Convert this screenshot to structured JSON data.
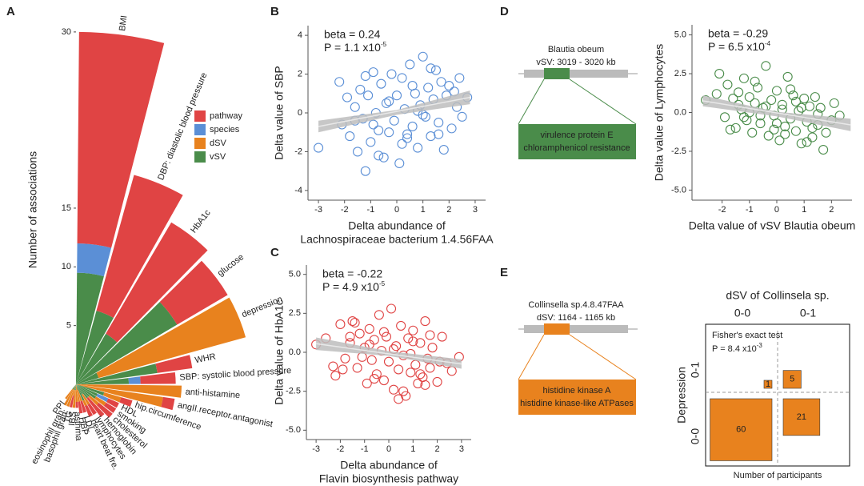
{
  "chart_data": [
    {
      "type": "radial",
      "panel": "A",
      "ylabel": "Number of associations",
      "yticks": [
        5,
        10,
        15,
        30
      ],
      "categories": [
        "BMI",
        "DBP: diastolic blood pressure",
        "HbA1c",
        "glucose",
        "depression",
        "WHR",
        "SBP: systolic blood pressure",
        "anti-histamine",
        "angII.receptor.antagonist",
        "hip.circumference",
        "HDL",
        "smoking",
        "cholesterol",
        "hemoglobin",
        "lymphocytes",
        "heart beat fre.",
        "LDL",
        "HBP",
        "asthma",
        "IBS",
        "TG",
        "basophil gran.",
        "eosinophil gran.",
        "PPI"
      ],
      "series": [
        {
          "name": "pathway",
          "color": "#e04444",
          "values": [
            18,
            12,
            11,
            5,
            0,
            3,
            3,
            0,
            1,
            1,
            1,
            1,
            1.5,
            2,
            1,
            1,
            1,
            1,
            0.5,
            0,
            1,
            0,
            0,
            0
          ]
        },
        {
          "name": "species",
          "color": "#5b8fd6",
          "values": [
            2.5,
            0,
            0,
            0,
            0,
            0,
            1,
            0,
            0,
            0,
            1,
            0,
            0,
            0,
            0,
            0,
            0,
            0,
            0,
            0,
            0,
            0,
            0,
            0
          ]
        },
        {
          "name": "dSV",
          "color": "#e8821e",
          "values": [
            0,
            0,
            0,
            0,
            13,
            0,
            0,
            9,
            7.5,
            1.5,
            0,
            1,
            1,
            0,
            1,
            0.5,
            1,
            1.5,
            1.5,
            1.5,
            0.5,
            2,
            1.5,
            1
          ]
        },
        {
          "name": "vSV",
          "color": "#4a8c4a",
          "values": [
            9.5,
            6.5,
            5,
            10,
            2,
            7,
            4.5,
            0,
            0,
            2.5,
            2,
            2,
            1.5,
            1.5,
            1,
            1.5,
            0.5,
            0,
            0,
            0.5,
            0.5,
            0,
            0.5,
            0.5
          ]
        }
      ]
    },
    {
      "type": "scatter",
      "panel": "B",
      "color": "#5b8fd6",
      "ylabel": "Delta value of SBP",
      "xlabel": [
        "Delta abundance of",
        "Lachnospiraceae bacterium 1.4.56FAA"
      ],
      "beta": "beta = 0.24",
      "p_value": {
        "text": "P = 1.1 x10",
        "exponent": "-5"
      },
      "xlim": [
        -3.4,
        3.4
      ],
      "ylim": [
        -4.5,
        4.5
      ],
      "xticks": [
        -3,
        -2,
        -1,
        0,
        1,
        2,
        3
      ],
      "yticks": [
        -4,
        -2,
        0,
        2,
        4
      ],
      "x": [
        -3.0,
        -2.2,
        -2.1,
        -1.9,
        -1.8,
        -1.6,
        -1.5,
        -1.4,
        -1.3,
        -1.2,
        -1.1,
        -1.0,
        -0.9,
        -0.8,
        -0.7,
        -0.6,
        -0.5,
        -0.4,
        -0.3,
        -0.2,
        -0.1,
        0.0,
        0.1,
        0.2,
        0.3,
        0.4,
        0.5,
        0.6,
        0.7,
        0.8,
        0.9,
        1.0,
        1.1,
        1.2,
        1.3,
        1.4,
        1.5,
        1.6,
        1.7,
        1.8,
        1.9,
        2.0,
        2.1,
        2.2,
        2.3,
        2.4,
        2.5,
        2.7,
        -1.2,
        -0.7,
        -0.3,
        0.2,
        0.6,
        1.0,
        1.3,
        -0.9,
        0.4,
        0.8,
        -1.6,
        1.6
      ],
      "y": [
        -1.8,
        1.6,
        -0.6,
        0.8,
        -1.2,
        0.3,
        -2.0,
        1.2,
        -0.3,
        -3.0,
        0.9,
        -1.5,
        2.1,
        0.0,
        -0.9,
        1.5,
        -2.3,
        0.5,
        -1.0,
        2.0,
        -0.4,
        0.9,
        -2.6,
        1.8,
        0.2,
        -1.3,
        2.5,
        -0.7,
        1.0,
        -1.8,
        0.4,
        2.9,
        -0.2,
        1.3,
        -1.2,
        0.7,
        2.2,
        -0.5,
        1.6,
        -1.9,
        0.9,
        1.4,
        -0.8,
        1.1,
        0.3,
        1.8,
        -0.2,
        0.8,
        1.9,
        -2.2,
        0.6,
        -1.6,
        1.4,
        -0.1,
        2.3,
        -0.6,
        -1.1,
        0.1,
        -0.4,
        -1.1
      ],
      "fit": {
        "x": [
          -3.0,
          2.8
        ],
        "y": [
          -0.7,
          0.8
        ]
      },
      "band": {
        "x": [
          -3.0,
          0,
          2.8
        ],
        "lower": [
          -1.0,
          -0.1,
          0.45
        ],
        "upper": [
          -0.4,
          0.15,
          1.15
        ]
      }
    },
    {
      "type": "scatter",
      "panel": "C",
      "color": "#e04444",
      "ylabel": "Delta value of HbA1c",
      "xlabel": [
        "Delta abundance of",
        "Flavin biosynthesis pathway"
      ],
      "beta": "beta = -0.22",
      "p_value": {
        "text": "P = 4.9 x10",
        "exponent": "-5"
      },
      "xlim": [
        -3.4,
        3.4
      ],
      "ylim": [
        -5.6,
        5.6
      ],
      "xticks": [
        -3,
        -2,
        -1,
        0,
        1,
        2,
        3
      ],
      "yticks": [
        {
          "value": 5,
          "label": "5.0"
        },
        2.5,
        {
          "value": 0,
          "label": "0.0"
        },
        -2.5,
        {
          "value": -5,
          "label": "-5.0"
        }
      ],
      "x": [
        -3.0,
        -2.6,
        -2.2,
        -2.0,
        -1.8,
        -1.6,
        -1.5,
        -1.3,
        -1.2,
        -1.0,
        -0.9,
        -0.8,
        -0.7,
        -0.6,
        -0.5,
        -0.4,
        -0.3,
        -0.2,
        -0.1,
        0.0,
        0.1,
        0.2,
        0.3,
        0.4,
        0.5,
        0.6,
        0.7,
        0.8,
        0.9,
        1.0,
        1.1,
        1.2,
        1.3,
        1.4,
        1.5,
        1.6,
        1.7,
        1.8,
        2.0,
        2.2,
        2.4,
        2.6,
        2.9,
        -1.9,
        -1.4,
        -1.1,
        -0.6,
        -0.2,
        0.2,
        0.6,
        1.0,
        1.3,
        1.7,
        2.1,
        -2.3,
        -0.8,
        0.4,
        0.9,
        -1.6,
        1.5
      ],
      "y": [
        0.5,
        0.9,
        -1.5,
        1.8,
        -0.4,
        0.6,
        2.0,
        -1.0,
        1.2,
        0.3,
        -2.0,
        1.5,
        -0.5,
        0.8,
        -1.4,
        2.4,
        0.1,
        -1.8,
        1.0,
        -0.6,
        2.8,
        -2.4,
        0.4,
        -1.1,
        1.7,
        -0.2,
        -2.8,
        0.9,
        -1.3,
        1.4,
        -0.8,
        -2.0,
        0.6,
        -1.6,
        2.0,
        -0.4,
        -1.0,
        0.3,
        -1.9,
        1.0,
        -0.7,
        -1.2,
        -0.3,
        -1.1,
        1.9,
        -0.3,
        -1.7,
        1.3,
        0.2,
        -2.5,
        0.7,
        -1.4,
        1.1,
        -0.6,
        -0.9,
        0.5,
        -3.0,
        -0.1,
        1.0,
        -2.1
      ],
      "fit": {
        "x": [
          -3.0,
          3.0
        ],
        "y": [
          0.55,
          -0.75
        ]
      },
      "band": {
        "x": [
          -3.0,
          0,
          3.0
        ],
        "lower": [
          0.15,
          -0.23,
          -1.05
        ],
        "upper": [
          0.95,
          0.07,
          -0.45
        ]
      }
    },
    {
      "type": "scatter",
      "color": "#4a8c4a",
      "ylabel": "Delta value of Lymphocytes",
      "xlabel": [
        "Delta value of vSV Blautia obeum"
      ],
      "beta": "beta = -0.29",
      "p_value": {
        "text": "P = 6.5 x10",
        "exponent": "-4"
      },
      "xlim": [
        -3.1,
        2.75
      ],
      "ylim": [
        -5.65,
        5.65
      ],
      "xticks": [
        -2,
        -1,
        0,
        1,
        2
      ],
      "yticks": [
        {
          "value": 5,
          "label": "5.0"
        },
        2.5,
        {
          "value": 0,
          "label": "0.0"
        },
        -2.5,
        {
          "value": -5,
          "label": "-5.0"
        }
      ],
      "x": [
        -2.6,
        -2.1,
        -1.9,
        -1.8,
        -1.6,
        -1.5,
        -1.4,
        -1.3,
        -1.2,
        -1.1,
        -1.0,
        -0.9,
        -0.8,
        -0.7,
        -0.6,
        -0.5,
        -0.4,
        -0.3,
        -0.2,
        -0.1,
        0.0,
        0.1,
        0.2,
        0.3,
        0.4,
        0.5,
        0.6,
        0.7,
        0.8,
        0.9,
        1.0,
        1.1,
        1.2,
        1.3,
        1.4,
        1.5,
        1.6,
        1.8,
        2.0,
        2.3,
        -1.7,
        -1.2,
        -0.8,
        -0.4,
        0.0,
        0.3,
        0.7,
        1.1,
        1.5,
        2.1,
        -2.2,
        -1.0,
        -0.1,
        0.9,
        1.7,
        -0.6,
        0.5,
        1.3,
        -1.4,
        0.2
      ],
      "y": [
        0.8,
        2.5,
        -0.3,
        1.8,
        0.9,
        -1.0,
        1.3,
        0.2,
        2.2,
        -0.5,
        1.0,
        -1.3,
        0.6,
        1.6,
        -0.7,
        0.3,
        3.0,
        -1.5,
        0.8,
        -0.2,
        1.4,
        -1.8,
        0.5,
        -0.9,
        2.3,
        -0.4,
        1.1,
        -1.2,
        0.1,
        -2.0,
        0.9,
        -0.6,
        0.4,
        -1.6,
        1.0,
        -0.8,
        0.3,
        -1.3,
        -0.5,
        -0.2,
        -1.1,
        -0.3,
        2.0,
        0.4,
        -0.7,
        -1.4,
        0.7,
        -1.9,
        -0.1,
        0.6,
        1.2,
        0.0,
        -1.1,
        0.3,
        -2.4,
        -0.2,
        1.5,
        -1.0,
        0.5,
        0.2
      ],
      "fit": {
        "x": [
          -2.7,
          2.7
        ],
        "y": [
          0.75,
          -0.8
        ]
      },
      "band": {
        "x": [
          -2.7,
          0,
          2.7
        ],
        "lower": [
          0.4,
          -0.25,
          -1.2
        ],
        "upper": [
          1.1,
          0.05,
          -0.4
        ]
      }
    },
    {
      "type": "mosaic",
      "title": "dSV of Collinsela sp.",
      "column_labels": [
        "0-0",
        "0-1"
      ],
      "row_labels": [
        "0-1",
        "0-0"
      ],
      "ylabel": "Depression",
      "xlabel": "Number of participants",
      "test": "Fisher's exact test",
      "p_value": {
        "text": "P = 8.4 x10",
        "exponent": "-3"
      },
      "values": [
        [
          1,
          5
        ],
        [
          60,
          21
        ]
      ],
      "color": "#e8821e"
    }
  ],
  "diagrams": [
    {
      "panel": "D",
      "organism": "Blautia obeum",
      "region": "vSV: 3019 - 3020 kb",
      "genes": [
        "virulence protein E",
        "chloramphenicol resistance"
      ],
      "color": "#4a8c4a"
    },
    {
      "panel": "E",
      "organism": "Collinsella sp.4.8.47FAA",
      "region": "dSV: 1164 - 1165 kb",
      "genes": [
        "histidine kinase A",
        "histidine kinase-like ATPases"
      ],
      "color": "#e8821e"
    }
  ]
}
